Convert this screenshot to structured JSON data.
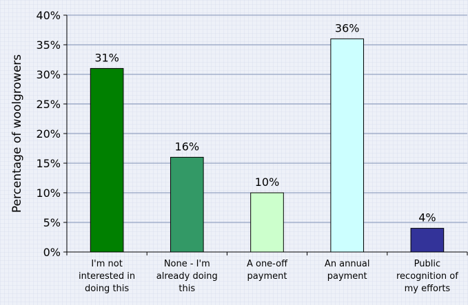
{
  "chart_data": {
    "type": "bar",
    "ylabel": "Percentage of woolgrowers",
    "xlabel": "",
    "ylim": [
      0,
      40
    ],
    "yticks": [
      "0%",
      "5%",
      "10%",
      "15%",
      "20%",
      "25%",
      "30%",
      "35%",
      "40%"
    ],
    "y_tick_values": [
      0,
      5,
      10,
      15,
      20,
      25,
      30,
      35,
      40
    ],
    "categories": [
      [
        "I'm not",
        "interested in",
        "doing this"
      ],
      [
        "None - I'm",
        "already doing",
        "this"
      ],
      [
        "A one-off",
        "payment"
      ],
      [
        "An annual",
        "payment"
      ],
      [
        "Public",
        "recognition of",
        "my efforts"
      ]
    ],
    "values": [
      31,
      16,
      10,
      36,
      4
    ],
    "data_labels": [
      "31%",
      "16%",
      "10%",
      "36%",
      "4%"
    ],
    "bar_colors": [
      "#008000",
      "#339966",
      "#ccffcc",
      "#ccffff",
      "#333399"
    ],
    "grid": true,
    "legend": "none"
  }
}
